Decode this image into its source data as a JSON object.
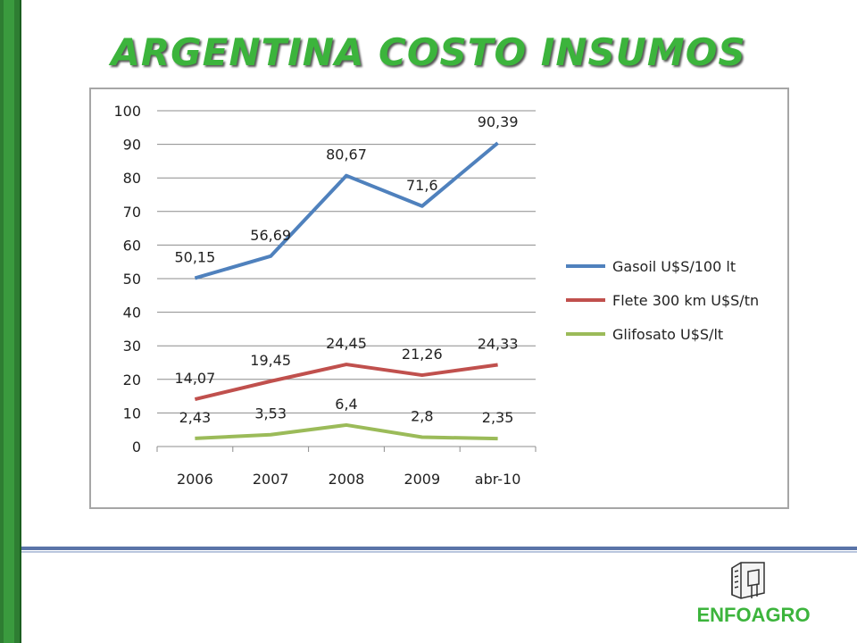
{
  "title": "ARGENTINA COSTO INSUMOS",
  "logo_text": "ENFOAGRO",
  "chart_data": {
    "type": "line",
    "categories": [
      "2006",
      "2007",
      "2008",
      "2009",
      "abr-10"
    ],
    "ylim": [
      0,
      100
    ],
    "yticks": [
      0,
      10,
      20,
      30,
      40,
      50,
      60,
      70,
      80,
      90,
      100
    ],
    "grid": true,
    "legend_position": "right",
    "series": [
      {
        "name": "Gasoil U$S/100 lt",
        "color": "#4f81bd",
        "values": [
          50.15,
          56.69,
          80.67,
          71.6,
          90.39
        ],
        "labels": [
          "50,15",
          "56,69",
          "80,67",
          "71,6",
          "90,39"
        ]
      },
      {
        "name": "Flete 300 km U$S/tn",
        "color": "#c0504d",
        "values": [
          14.07,
          19.45,
          24.45,
          21.26,
          24.33
        ],
        "labels": [
          "14,07",
          "19,45",
          "24,45",
          "21,26",
          "24,33"
        ]
      },
      {
        "name": "Glifosato U$S/lt",
        "color": "#9bbb59",
        "values": [
          2.43,
          3.53,
          6.4,
          2.8,
          2.35
        ],
        "labels": [
          "2,43",
          "3,53",
          "6,4",
          "2,8",
          "2,35"
        ]
      }
    ]
  },
  "colors": {
    "title": "#3cb43c",
    "left_bar": "#2e7d32",
    "divider": "#5a74a8"
  }
}
